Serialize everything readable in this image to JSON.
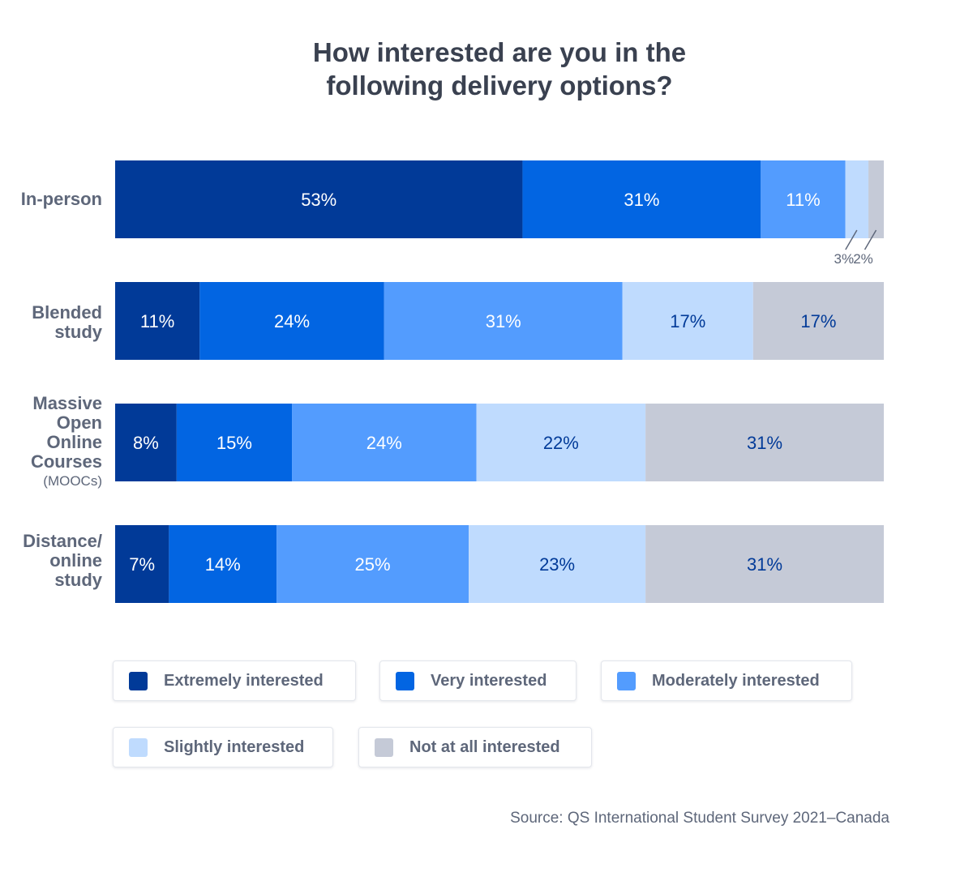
{
  "title": {
    "line1": "How interested are you in the",
    "line2": "following delivery options?"
  },
  "colors": {
    "extremely": "#013a98",
    "very": "#0265e2",
    "moderately": "#539cfe",
    "slightly": "#bfdbfe",
    "not_at_all": "#c5cad7"
  },
  "chart_data": {
    "type": "bar",
    "orientation": "horizontal",
    "stacked": true,
    "title": "How interested are you in the following delivery options?",
    "categories": [
      "In-person",
      "Blended study",
      "Massive Open Online Courses (MOOCs)",
      "Distance/ online study"
    ],
    "category_lines": [
      [
        "In-person"
      ],
      [
        "Blended",
        "study"
      ],
      [
        "Massive",
        "Open",
        "Online",
        "Courses",
        "(MOOCs)"
      ],
      [
        "Distance/",
        "online",
        "study"
      ]
    ],
    "series": [
      {
        "name": "Extremely interested",
        "color": "#013a98",
        "values": [
          53,
          11,
          8,
          7
        ],
        "labels": [
          "53%",
          "11%",
          "8%",
          "7%"
        ]
      },
      {
        "name": "Very interested",
        "color": "#0265e2",
        "values": [
          31,
          24,
          15,
          14
        ],
        "labels": [
          "31%",
          "24%",
          "15%",
          "14%"
        ]
      },
      {
        "name": "Moderately interested",
        "color": "#539cfe",
        "values": [
          11,
          31,
          24,
          25
        ],
        "labels": [
          "11%",
          "31%",
          "24%",
          "25%"
        ]
      },
      {
        "name": "Slightly interested",
        "color": "#bfdbfe",
        "values": [
          3,
          17,
          22,
          23
        ],
        "labels": [
          "3%",
          "17%",
          "22%",
          "23%"
        ]
      },
      {
        "name": "Not at all interested",
        "color": "#c5cad7",
        "values": [
          2,
          17,
          31,
          31
        ],
        "labels": [
          "2%",
          "17%",
          "31%",
          "31%"
        ]
      }
    ],
    "xlim": [
      0,
      100
    ],
    "grid": false,
    "legend_position": "bottom"
  },
  "source": "Source: QS International Student Survey 2021–Canada"
}
